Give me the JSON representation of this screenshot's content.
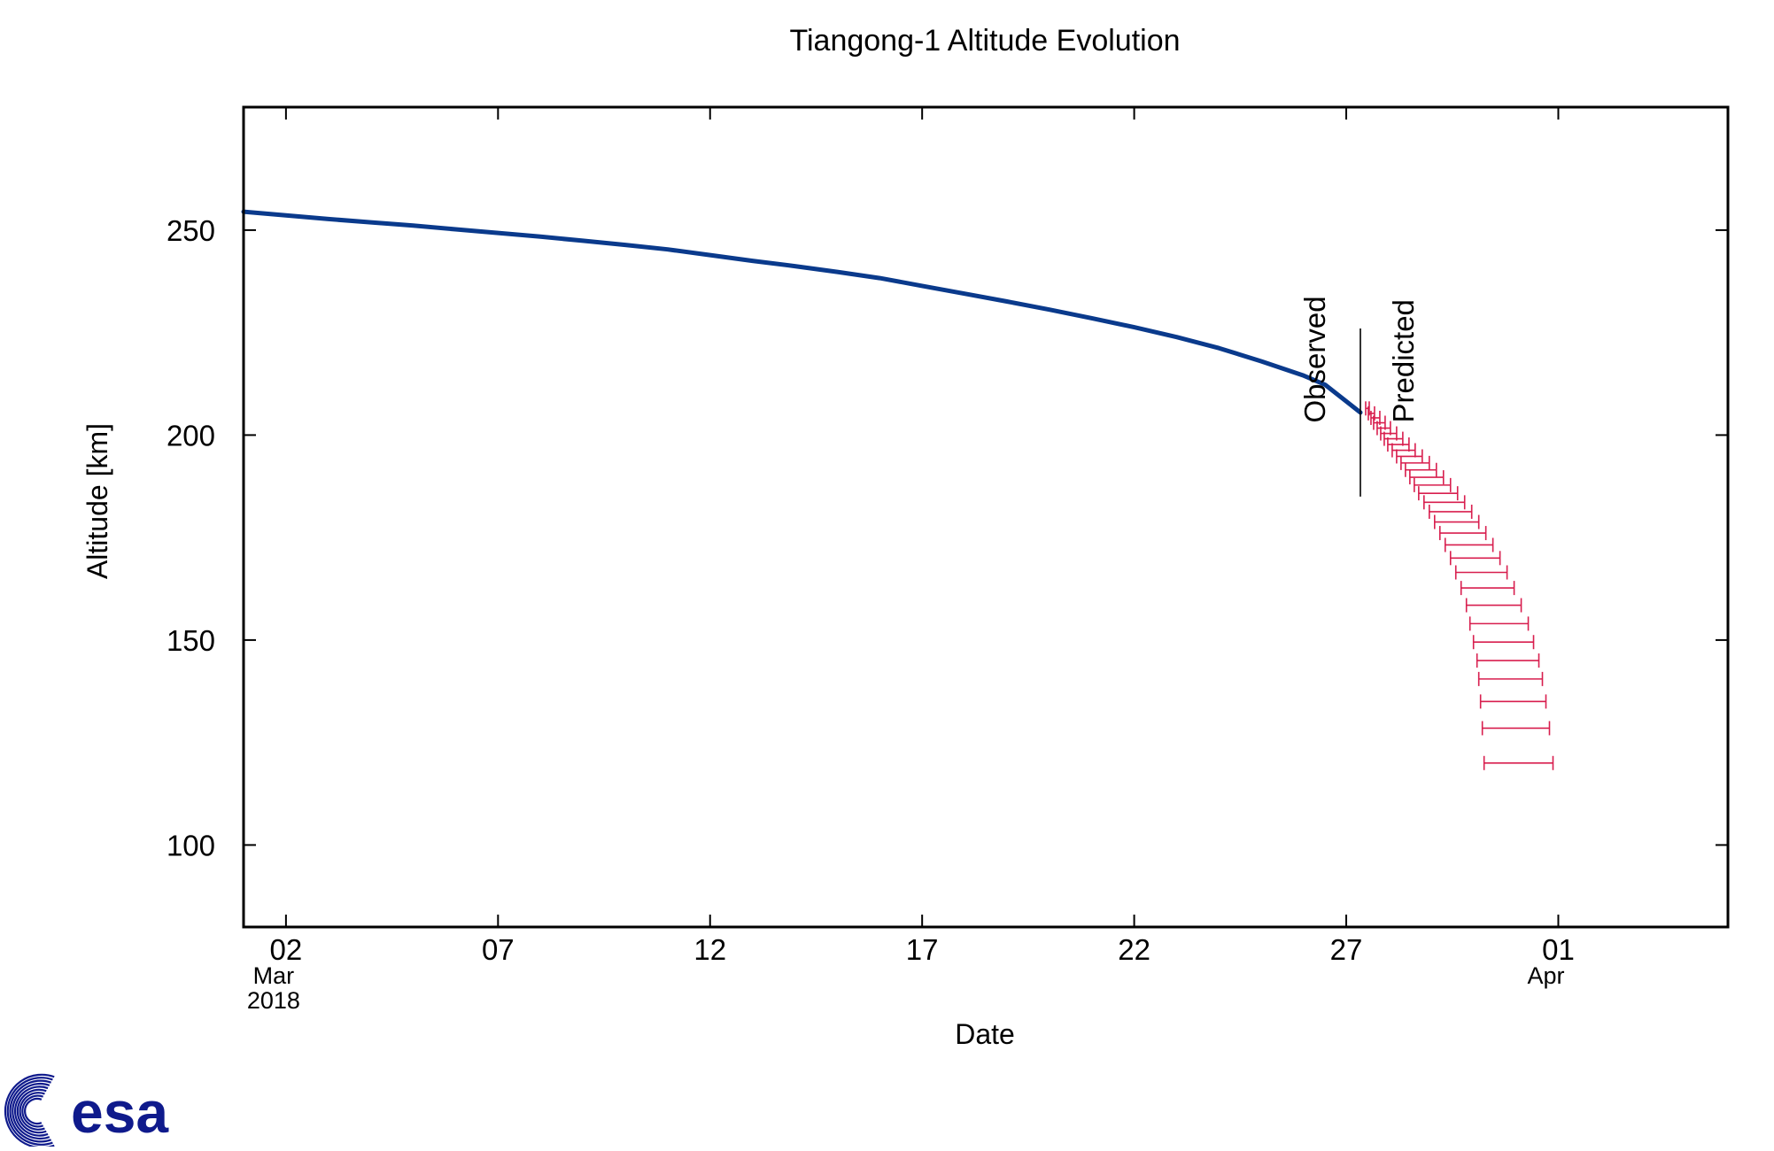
{
  "chart_data": {
    "type": "line",
    "title": "Tiangong-1 Altitude Evolution",
    "xlabel": "Date",
    "ylabel": "Altitude [km]",
    "ylim": [
      80,
      280
    ],
    "xlim": [
      "2018-03-01",
      "2018-04-05"
    ],
    "y_ticks": [
      100,
      150,
      200,
      250
    ],
    "x_ticks": [
      {
        "date": "2018-03-02",
        "label": "02",
        "sublabel": "Mar",
        "sublabel2": "2018"
      },
      {
        "date": "2018-03-07",
        "label": "07"
      },
      {
        "date": "2018-03-12",
        "label": "12"
      },
      {
        "date": "2018-03-17",
        "label": "17"
      },
      {
        "date": "2018-03-22",
        "label": "22"
      },
      {
        "date": "2018-03-27",
        "label": "27"
      },
      {
        "date": "2018-04-01",
        "label": "01",
        "sublabel": "Apr"
      }
    ],
    "grid": false,
    "separator": {
      "date": "2018-03-27 08:00",
      "ymin": 185,
      "ymax": 226
    },
    "annotations": [
      {
        "text": "Observed",
        "date": "2018-03-26 12:00",
        "y": 203
      },
      {
        "text": "Predicted",
        "date": "2018-03-28 14:00",
        "y": 203
      }
    ],
    "series": [
      {
        "color": "#0a3a8c",
        "kind": "line",
        "x": [
          "2018-03-01 00:00",
          "2018-03-02 00:00",
          "2018-03-03 00:00",
          "2018-03-04 00:00",
          "2018-03-05 00:00",
          "2018-03-06 00:00",
          "2018-03-07 00:00",
          "2018-03-08 00:00",
          "2018-03-09 00:00",
          "2018-03-10 00:00",
          "2018-03-11 00:00",
          "2018-03-12 00:00",
          "2018-03-13 00:00",
          "2018-03-14 00:00",
          "2018-03-15 00:00",
          "2018-03-16 00:00",
          "2018-03-17 00:00",
          "2018-03-18 00:00",
          "2018-03-19 00:00",
          "2018-03-20 00:00",
          "2018-03-21 00:00",
          "2018-03-22 00:00",
          "2018-03-23 00:00",
          "2018-03-24 00:00",
          "2018-03-25 00:00",
          "2018-03-26 00:00",
          "2018-03-26 12:00",
          "2018-03-27 08:00"
        ],
        "y": [
          254.5,
          253.6,
          252.7,
          251.9,
          251.1,
          250.2,
          249.3,
          248.4,
          247.4,
          246.4,
          245.3,
          243.9,
          242.5,
          241.2,
          239.8,
          238.3,
          236.4,
          234.5,
          232.6,
          230.6,
          228.5,
          226.3,
          223.9,
          221.2,
          218.0,
          214.5,
          212.3,
          205.5
        ]
      },
      {
        "color": "#d81e4e",
        "kind": "errorbar",
        "y": [
          206.5,
          205.3,
          204.2,
          203.0,
          201.7,
          200.4,
          199.1,
          197.7,
          196.3,
          194.8,
          193.2,
          191.5,
          189.7,
          187.8,
          185.8,
          183.6,
          181.3,
          178.8,
          176.1,
          173.2,
          170.0,
          166.5,
          162.7,
          158.5,
          154.0,
          149.5,
          145.0,
          140.5,
          135.0,
          128.5,
          120.0
        ],
        "x_low": [
          "2018-03-27 11:00",
          "2018-03-27 12:30",
          "2018-03-27 14:00",
          "2018-03-27 15:30",
          "2018-03-27 17:30",
          "2018-03-27 19:30",
          "2018-03-27 21:30",
          "2018-03-27 23:30",
          "2018-03-28 02:00",
          "2018-03-28 04:30",
          "2018-03-28 07:00",
          "2018-03-28 09:30",
          "2018-03-28 12:00",
          "2018-03-28 14:30",
          "2018-03-28 17:00",
          "2018-03-28 20:00",
          "2018-03-28 23:00",
          "2018-03-29 02:00",
          "2018-03-29 05:00",
          "2018-03-29 08:00",
          "2018-03-29 11:00",
          "2018-03-29 14:00",
          "2018-03-29 17:00",
          "2018-03-29 20:00",
          "2018-03-29 22:00",
          "2018-03-30 00:00",
          "2018-03-30 02:00",
          "2018-03-30 03:00",
          "2018-03-30 04:00",
          "2018-03-30 05:00",
          "2018-03-30 06:00"
        ],
        "x_high": [
          "2018-03-27 13:00",
          "2018-03-27 16:00",
          "2018-03-27 19:00",
          "2018-03-27 22:00",
          "2018-03-28 01:00",
          "2018-03-28 04:30",
          "2018-03-28 08:00",
          "2018-03-28 11:30",
          "2018-03-28 15:00",
          "2018-03-28 19:00",
          "2018-03-28 23:00",
          "2018-03-29 03:00",
          "2018-03-29 07:00",
          "2018-03-29 11:00",
          "2018-03-29 15:00",
          "2018-03-29 19:00",
          "2018-03-29 23:00",
          "2018-03-30 03:00",
          "2018-03-30 07:00",
          "2018-03-30 11:00",
          "2018-03-30 15:00",
          "2018-03-30 19:00",
          "2018-03-30 23:00",
          "2018-03-31 03:00",
          "2018-03-31 07:00",
          "2018-03-31 10:00",
          "2018-03-31 13:00",
          "2018-03-31 15:00",
          "2018-03-31 17:00",
          "2018-03-31 19:00",
          "2018-03-31 21:00"
        ]
      }
    ]
  },
  "logo": {
    "text": "esa",
    "color": "#0f1a8c"
  }
}
